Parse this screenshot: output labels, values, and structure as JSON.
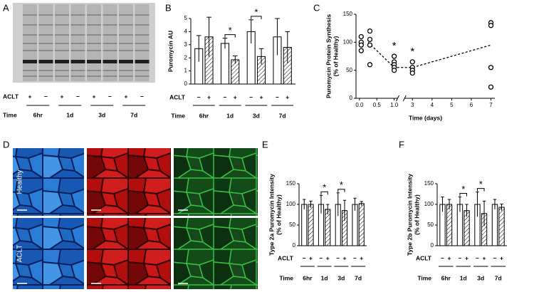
{
  "panels": [
    {
      "letter": "A",
      "row_labels": [
        "ACLT",
        "Time"
      ],
      "signs": [
        "+",
        "−",
        "+",
        "−",
        "+",
        "−",
        "+",
        "−"
      ],
      "times": [
        "6hr",
        "1d",
        "3d",
        "7d"
      ]
    },
    {
      "letter": "D",
      "rows": [
        "Healthy",
        "ACLT"
      ]
    }
  ],
  "chart_data": [
    {
      "type": "bar",
      "panel": "B",
      "ylabel": [
        "Puromycin AU"
      ],
      "categories": [
        "6hr",
        "1d",
        "3d",
        "7d"
      ],
      "row_labels": [
        "ACLT",
        "Time"
      ],
      "series": [
        {
          "name": "−",
          "color": "#ffffff",
          "hatched": false,
          "values": [
            2.7,
            3.1,
            4.0,
            3.6
          ],
          "errors": [
            1.0,
            0.4,
            0.9,
            1.4
          ]
        },
        {
          "name": "+",
          "color": "#ffffff",
          "hatched": true,
          "values": [
            3.6,
            1.85,
            2.1,
            2.8
          ],
          "errors": [
            1.5,
            0.3,
            0.6,
            1.2
          ]
        }
      ],
      "ylim": [
        0,
        5
      ],
      "yticks": [
        0,
        1,
        2,
        3,
        4,
        5
      ],
      "significant": [
        false,
        true,
        true,
        false
      ],
      "sig_label": "*"
    },
    {
      "type": "scatter",
      "panel": "C",
      "ylabel": [
        "Puromycin Protein Synthesis",
        "(% of Healthy)"
      ],
      "xlabel": "Time (days)",
      "x": [
        0.05,
        0.05,
        0.05,
        0.05,
        0.3,
        0.3,
        0.3,
        0.3,
        1,
        1,
        1,
        1,
        1,
        3,
        3,
        3,
        3,
        7,
        7,
        7,
        7
      ],
      "y": [
        110,
        100,
        95,
        85,
        120,
        105,
        95,
        60,
        75,
        65,
        60,
        55,
        50,
        65,
        55,
        50,
        45,
        135,
        130,
        55,
        20
      ],
      "trend": {
        "x": [
          0.25,
          1,
          3,
          7
        ],
        "y": [
          100,
          55,
          55,
          95
        ]
      },
      "xlim": [
        -0.1,
        7.2
      ],
      "x_break": [
        1.1,
        2.6
      ],
      "xticks": [
        {
          "value": 0,
          "label": "0.0"
        },
        0.5,
        {
          "value": 1,
          "label": "1.0"
        },
        3,
        4,
        5,
        6,
        7
      ],
      "ylim": [
        0,
        150
      ],
      "yticks": [
        0,
        50,
        100,
        150
      ],
      "significant_x": [
        1,
        3
      ],
      "sig_label": "*"
    },
    {
      "type": "bar",
      "panel": "E",
      "ylabel": [
        "Type 2a Puromycin Intensity",
        "(% of Healthy)"
      ],
      "categories": [
        "6hr",
        "1d",
        "3d",
        "7d"
      ],
      "row_labels": [
        "ACLT",
        "Time"
      ],
      "series": [
        {
          "name": "−",
          "color": "#ffffff",
          "hatched": false,
          "values": [
            100,
            100,
            100,
            100
          ],
          "errors": [
            12,
            22,
            28,
            15
          ]
        },
        {
          "name": "+",
          "color": "#ffffff",
          "hatched": true,
          "values": [
            100,
            88,
            85,
            102
          ],
          "errors": [
            8,
            12,
            25,
            5
          ]
        }
      ],
      "ylim": [
        0,
        150
      ],
      "yticks": [
        0,
        50,
        100,
        150
      ],
      "significant": [
        false,
        true,
        true,
        false
      ],
      "sig_label": "*"
    },
    {
      "type": "bar",
      "panel": "F",
      "ylabel": [
        "Type 2b Puromycin Intensity",
        "(% of Healthy)"
      ],
      "categories": [
        "6hr",
        "1d",
        "3d",
        "7d"
      ],
      "row_labels": [
        "ACLT",
        "Time"
      ],
      "series": [
        {
          "name": "−",
          "color": "#ffffff",
          "hatched": false,
          "values": [
            100,
            100,
            100,
            100
          ],
          "errors": [
            18,
            18,
            30,
            12
          ]
        },
        {
          "name": "+",
          "color": "#ffffff",
          "hatched": true,
          "values": [
            100,
            85,
            78,
            93
          ],
          "errors": [
            12,
            15,
            30,
            8
          ]
        }
      ],
      "ylim": [
        0,
        150
      ],
      "yticks": [
        0,
        50,
        100,
        150
      ],
      "significant": [
        false,
        true,
        true,
        false
      ],
      "sig_label": "*"
    }
  ]
}
